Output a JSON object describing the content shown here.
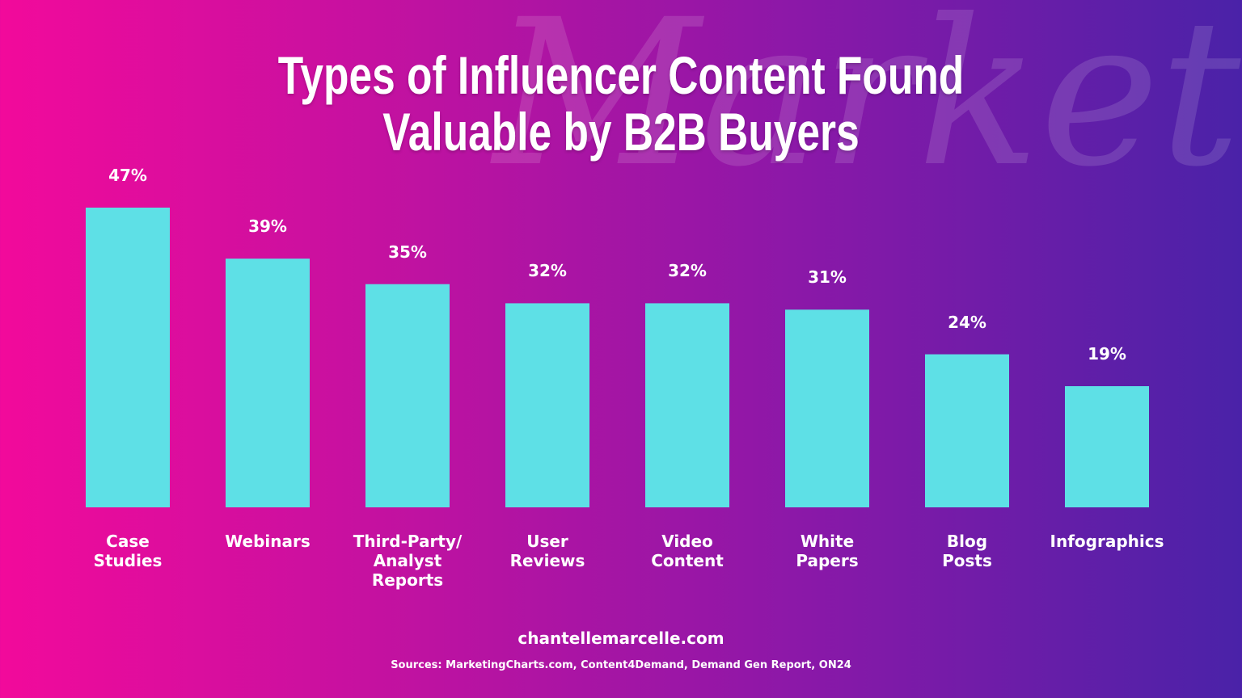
{
  "chart_data": {
    "type": "bar",
    "title": "Types of Influencer Content Found\nValuable by B2B Buyers",
    "watermark": "Marketing",
    "categories": [
      "Case\nStudies",
      "Webinars",
      "Third-Party/\nAnalyst\nReports",
      "User\nReviews",
      "Video\nContent",
      "White\nPapers",
      "Blog\nPosts",
      "Infographics"
    ],
    "values": [
      47,
      39,
      35,
      32,
      32,
      31,
      24,
      19
    ],
    "value_labels": [
      "47%",
      "39%",
      "35%",
      "32%",
      "32%",
      "31%",
      "24%",
      "19%"
    ],
    "color": "#5ee0e6",
    "website": "chantellemarcelle.com",
    "sources": "Sources: MarketingCharts.com, Content4Demand, Demand Gen Report, ON24"
  }
}
